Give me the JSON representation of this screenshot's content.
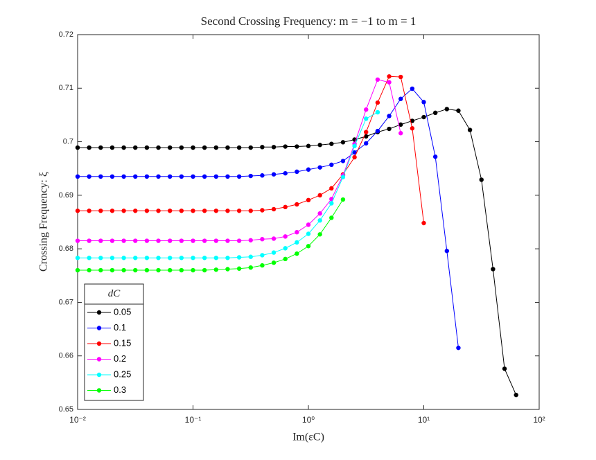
{
  "chart_data": {
    "type": "line",
    "title": "Second Crossing Frequency: m = −1 to m = 1",
    "xlabel": "Im(εC)",
    "ylabel": "Crossing Frequency: ξ",
    "legend_title": "dC",
    "legend": "lower left",
    "xscale": "log",
    "xlim": [
      0.01,
      100
    ],
    "xticks": [
      {
        "value": 0.01,
        "label": "10⁻²"
      },
      {
        "value": 0.1,
        "label": "10⁻¹"
      },
      {
        "value": 1,
        "label": "10⁰"
      },
      {
        "value": 10,
        "label": "10¹"
      },
      {
        "value": 100,
        "label": "10²"
      }
    ],
    "ylim": [
      0.65,
      0.72
    ],
    "yticks": [
      0.65,
      0.66,
      0.67,
      0.68,
      0.69,
      0.7,
      0.71,
      0.72
    ],
    "x": [
      0.01,
      0.01259,
      0.01585,
      0.01995,
      0.02512,
      0.03162,
      0.03981,
      0.05012,
      0.0631,
      0.07943,
      0.1,
      0.1259,
      0.1585,
      0.1995,
      0.2512,
      0.3162,
      0.3981,
      0.5012,
      0.631,
      0.7943,
      1,
      1.259,
      1.585,
      1.995,
      2.512,
      3.162,
      3.981,
      5.012,
      6.31,
      7.943,
      10,
      12.59,
      15.85,
      19.95,
      25.12,
      31.62,
      39.81,
      50.12,
      63.1
    ],
    "series": [
      {
        "name": "0.05",
        "color": "#000000",
        "values": [
          0.6989,
          0.6989,
          0.6989,
          0.6989,
          0.6989,
          0.6989,
          0.6989,
          0.6989,
          0.6989,
          0.6989,
          0.6989,
          0.6989,
          0.6989,
          0.6989,
          0.6989,
          0.6989,
          0.699,
          0.699,
          0.6991,
          0.6991,
          0.6992,
          0.6994,
          0.6996,
          0.6999,
          0.7004,
          0.701,
          0.7018,
          0.7024,
          0.7032,
          0.7039,
          0.7046,
          0.7054,
          0.7061,
          0.7058,
          0.7022,
          0.6929,
          0.6762,
          0.6576,
          0.6527
        ]
      },
      {
        "name": "0.1",
        "color": "#0000ff",
        "values": [
          0.6935,
          0.6935,
          0.6935,
          0.6935,
          0.6935,
          0.6935,
          0.6935,
          0.6935,
          0.6935,
          0.6935,
          0.6935,
          0.6935,
          0.6935,
          0.6935,
          0.6935,
          0.6936,
          0.6937,
          0.6939,
          0.6941,
          0.6944,
          0.6948,
          0.6952,
          0.6957,
          0.6964,
          0.698,
          0.6997,
          0.702,
          0.7048,
          0.708,
          0.7099,
          0.7074,
          0.6972,
          0.6796,
          0.6615,
          null,
          null,
          null,
          null,
          null
        ]
      },
      {
        "name": "0.15",
        "color": "#ff0000",
        "values": [
          0.6871,
          0.6871,
          0.6871,
          0.6871,
          0.6871,
          0.6871,
          0.6871,
          0.6871,
          0.6871,
          0.6871,
          0.6871,
          0.6871,
          0.6871,
          0.6871,
          0.6871,
          0.6871,
          0.6872,
          0.6874,
          0.6878,
          0.6883,
          0.6891,
          0.69,
          0.6913,
          0.6939,
          0.6971,
          0.7018,
          0.7073,
          0.7122,
          0.7121,
          0.7025,
          0.6848,
          null,
          null,
          null,
          null,
          null,
          null,
          null,
          null
        ]
      },
      {
        "name": "0.2",
        "color": "#ff00ff",
        "values": [
          0.6815,
          0.6815,
          0.6815,
          0.6815,
          0.6815,
          0.6815,
          0.6815,
          0.6815,
          0.6815,
          0.6815,
          0.6815,
          0.6815,
          0.6815,
          0.6815,
          0.6815,
          0.6816,
          0.6818,
          0.6819,
          0.6823,
          0.6831,
          0.6845,
          0.6866,
          0.6893,
          0.6937,
          0.6996,
          0.706,
          0.7116,
          0.7111,
          0.7016,
          null,
          null,
          null,
          null,
          null,
          null,
          null,
          null,
          null,
          null
        ]
      },
      {
        "name": "0.25",
        "color": "#00ffff",
        "values": [
          0.6783,
          0.6783,
          0.6783,
          0.6783,
          0.6783,
          0.6783,
          0.6783,
          0.6783,
          0.6783,
          0.6783,
          0.6783,
          0.6783,
          0.6783,
          0.6783,
          0.6784,
          0.6785,
          0.6788,
          0.6793,
          0.6801,
          0.6812,
          0.6828,
          0.6853,
          0.6885,
          0.6934,
          0.6992,
          0.7043,
          0.7055,
          null,
          null,
          null,
          null,
          null,
          null,
          null,
          null,
          null,
          null,
          null,
          null
        ]
      },
      {
        "name": "0.3",
        "color": "#00ff00",
        "values": [
          0.676,
          0.676,
          0.676,
          0.676,
          0.676,
          0.676,
          0.676,
          0.676,
          0.676,
          0.676,
          0.676,
          0.676,
          0.6761,
          0.6762,
          0.6763,
          0.6765,
          0.6769,
          0.6774,
          0.6781,
          0.6791,
          0.6805,
          0.6827,
          0.6858,
          0.6892,
          null,
          null,
          null,
          null,
          null,
          null,
          null,
          null,
          null,
          null,
          null,
          null,
          null,
          null,
          null
        ]
      }
    ]
  }
}
